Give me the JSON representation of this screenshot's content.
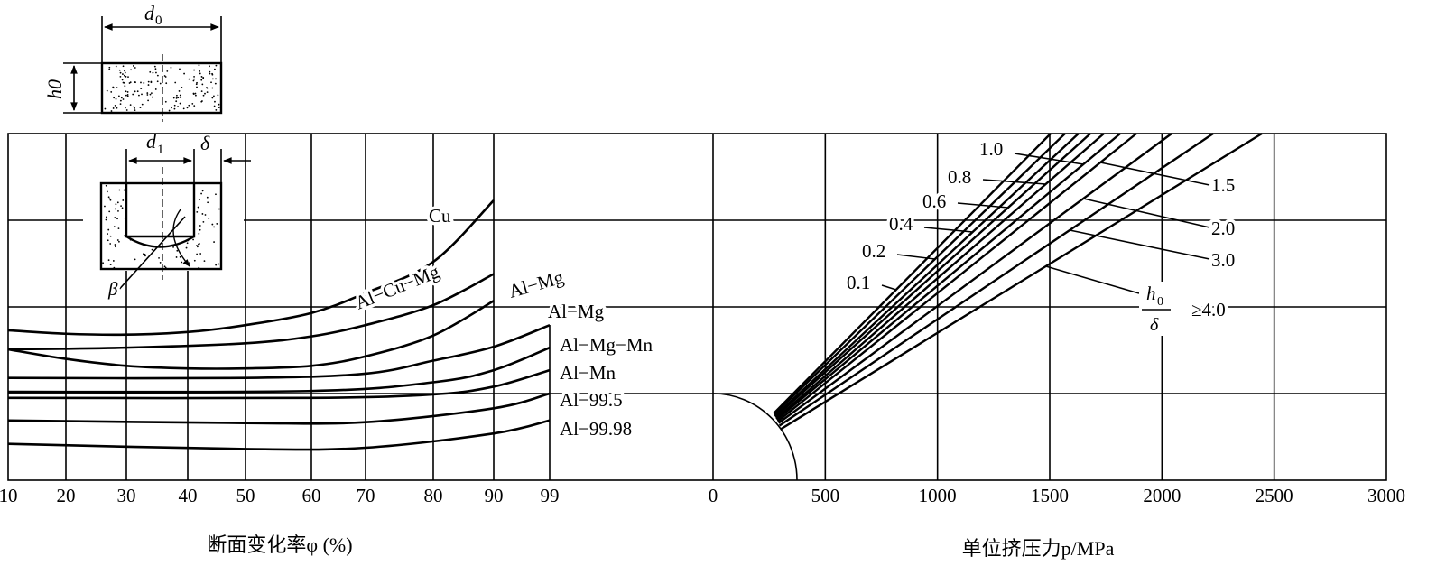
{
  "chart_data": [
    {
      "type": "line",
      "title": "",
      "xlabel": "断面变化率φ (%)",
      "ylabel": "",
      "x_ticks": [
        10,
        20,
        30,
        40,
        50,
        60,
        70,
        80,
        90,
        99
      ],
      "y_units": "grid rows (unlabelled, 0 = bottom, 4 = top)",
      "ylim": [
        0,
        4
      ],
      "grid": true,
      "series": [
        {
          "name": "Cu",
          "x": [
            10,
            20,
            30,
            40,
            50,
            60,
            70,
            80,
            90
          ],
          "y": [
            1.73,
            1.69,
            1.68,
            1.71,
            1.79,
            1.93,
            2.16,
            2.52,
            3.23
          ]
        },
        {
          "name": "Al-Cu-Mg",
          "x": [
            10,
            30,
            50,
            60,
            70,
            80,
            90
          ],
          "y": [
            1.51,
            1.53,
            1.58,
            1.66,
            1.79,
            2.02,
            2.38
          ]
        },
        {
          "name": "Al-Mg",
          "x": [
            10,
            20,
            30,
            40,
            50,
            60,
            70,
            80,
            90
          ],
          "y": [
            1.51,
            1.4,
            1.32,
            1.29,
            1.29,
            1.32,
            1.43,
            1.67,
            2.07
          ]
        },
        {
          "name": "Al-Mg",
          "x": [
            10,
            50,
            70,
            80,
            90,
            99
          ],
          "y": [
            1.18,
            1.18,
            1.23,
            1.38,
            1.54,
            1.79
          ]
        },
        {
          "name": "Al-Mg-Mn",
          "x": [
            10,
            60,
            80,
            90,
            99
          ],
          "y": [
            1.02,
            1.03,
            1.13,
            1.27,
            1.53
          ]
        },
        {
          "name": "Al-Mn",
          "x": [
            10,
            60,
            80,
            90,
            99
          ],
          "y": [
            0.95,
            0.95,
            0.99,
            1.08,
            1.27
          ]
        },
        {
          "name": "Al-99.5",
          "x": [
            10,
            50,
            70,
            90,
            99
          ],
          "y": [
            0.69,
            0.66,
            0.67,
            0.83,
            1.0
          ]
        },
        {
          "name": "Al-99.98",
          "x": [
            10,
            50,
            70,
            90,
            99
          ],
          "y": [
            0.42,
            0.36,
            0.375,
            0.54,
            0.69
          ]
        }
      ]
    },
    {
      "type": "line",
      "title": "",
      "xlabel": "单位挤压力p/MPa",
      "xlim": [
        0,
        3000
      ],
      "x_ticks": [
        0,
        500,
        1000,
        1500,
        2000,
        2500,
        3000
      ],
      "ylim": [
        0,
        4
      ],
      "grid": true,
      "parameter_label": {
        "num": "h0",
        "den": "δ"
      },
      "series": [
        {
          "name": "0.1",
          "x": [
            270,
            1504
          ],
          "y": [
            0.77,
            4
          ]
        },
        {
          "name": "0.2",
          "x": [
            272,
            1568
          ],
          "y": [
            0.76,
            4
          ]
        },
        {
          "name": "0.4",
          "x": [
            275,
            1628
          ],
          "y": [
            0.74,
            4
          ]
        },
        {
          "name": "0.6",
          "x": [
            278,
            1681
          ],
          "y": [
            0.73,
            4
          ]
        },
        {
          "name": "0.8",
          "x": [
            281,
            1741
          ],
          "y": [
            0.71,
            4
          ]
        },
        {
          "name": "1.0",
          "x": [
            284,
            1814
          ],
          "y": [
            0.7,
            4
          ]
        },
        {
          "name": "1.5",
          "x": [
            288,
            1886
          ],
          "y": [
            0.68,
            4
          ]
        },
        {
          "name": "2.0",
          "x": [
            292,
            2043
          ],
          "y": [
            0.66,
            4
          ]
        },
        {
          "name": "3.0",
          "x": [
            296,
            2228
          ],
          "y": [
            0.63,
            4
          ]
        },
        {
          "name": "≥4.0",
          "x": [
            302,
            2445
          ],
          "y": [
            0.59,
            4
          ]
        }
      ]
    }
  ],
  "inset": {
    "d0": "d0",
    "h0": "h0",
    "d1": "d1",
    "delta": "δ",
    "beta": "β"
  }
}
